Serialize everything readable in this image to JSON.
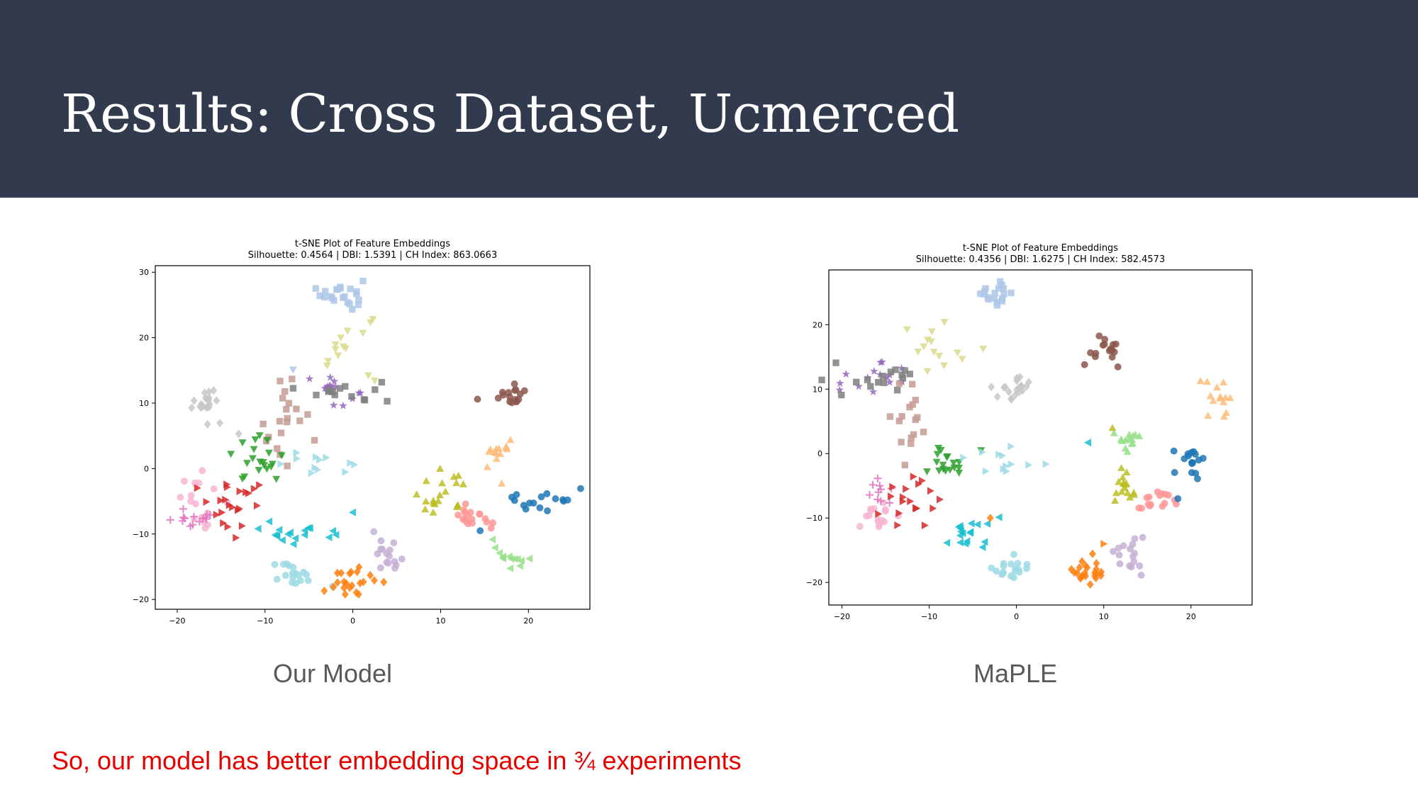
{
  "slide": {
    "title": "Results: Cross Dataset, Ucmerced",
    "caption_left": "Our Model",
    "caption_right": "MaPLE",
    "conclusion": "So, our model has better embedding space in ¾ experiments"
  },
  "chart_data": [
    {
      "type": "scatter",
      "title": "t-SNE Plot of Feature Embeddings",
      "subtitle": "Silhouette: 0.4564 | DBI: 1.5391 | CH Index: 863.0663",
      "xlabel": "",
      "ylabel": "",
      "xlim": [
        -22.5,
        27
      ],
      "ylim": [
        -21.5,
        31
      ],
      "xticks": [
        "−20",
        "−10",
        "0",
        "10",
        "20"
      ],
      "yticks": [
        "30",
        "20",
        "10",
        "0",
        "−10",
        "−20"
      ],
      "xtick_values": [
        -20,
        -10,
        0,
        10,
        20
      ],
      "ytick_values": [
        30,
        20,
        10,
        0,
        -10,
        -20
      ],
      "grid": false,
      "clusters": [
        {
          "color": "#aec7e8",
          "marker": "square",
          "cx": -1.2,
          "cy": 26.8,
          "sx": 1.2,
          "sy": 1.2,
          "n": 22
        },
        {
          "color": "#dbdb8d",
          "marker": "triangle-down",
          "cx": -0.8,
          "cy": 18.5,
          "sx": 1.8,
          "sy": 3.2,
          "n": 14
        },
        {
          "color": "#c7c7c7",
          "marker": "diamond",
          "cx": -16.6,
          "cy": 10.2,
          "sx": 1.0,
          "sy": 1.2,
          "n": 20
        },
        {
          "color": "#9467bd",
          "marker": "star",
          "cx": -2.5,
          "cy": 12.2,
          "sx": 2.0,
          "sy": 1.2,
          "n": 16
        },
        {
          "color": "#7f7f7f",
          "marker": "square",
          "cx": -0.5,
          "cy": 11.9,
          "sx": 1.8,
          "sy": 1.0,
          "n": 14
        },
        {
          "color": "#c49c94",
          "marker": "square",
          "cx": -8.0,
          "cy": 7.5,
          "sx": 1.4,
          "sy": 3.8,
          "n": 20
        },
        {
          "color": "#8c564b",
          "marker": "circle",
          "cx": 18.0,
          "cy": 11.2,
          "sx": 0.9,
          "sy": 0.8,
          "n": 16
        },
        {
          "color": "#ffbb78",
          "marker": "triangle-up",
          "cx": 16.5,
          "cy": 2.0,
          "sx": 1.0,
          "sy": 1.4,
          "n": 14
        },
        {
          "color": "#2ca02c",
          "marker": "triangle-down",
          "cx": -10.8,
          "cy": 1.5,
          "sx": 1.5,
          "sy": 1.6,
          "n": 20
        },
        {
          "color": "#9edae5",
          "marker": "triangle-right",
          "cx": -4.2,
          "cy": 0.8,
          "sx": 2.4,
          "sy": 1.2,
          "n": 12
        },
        {
          "color": "#f7b6d2",
          "marker": "circle",
          "cx": -17.0,
          "cy": -4.5,
          "sx": 1.3,
          "sy": 1.8,
          "n": 16
        },
        {
          "color": "#e377c2",
          "marker": "plus",
          "cx": -17.5,
          "cy": -7.8,
          "sx": 1.6,
          "sy": 0.9,
          "n": 14
        },
        {
          "color": "#d62728",
          "marker": "triangle-right",
          "cx": -13.5,
          "cy": -6.0,
          "sx": 2.3,
          "sy": 2.0,
          "n": 22
        },
        {
          "color": "#bcbd22",
          "marker": "triangle-up",
          "cx": 10.0,
          "cy": -3.8,
          "sx": 1.6,
          "sy": 1.8,
          "n": 20
        },
        {
          "color": "#ff9896",
          "marker": "circle",
          "cx": 13.5,
          "cy": -7.8,
          "sx": 1.2,
          "sy": 0.8,
          "n": 18
        },
        {
          "color": "#1f77b4",
          "marker": "circle",
          "cx": 22.0,
          "cy": -5.0,
          "sx": 2.3,
          "sy": 0.9,
          "n": 16
        },
        {
          "color": "#17becf",
          "marker": "triangle-left",
          "cx": -6.5,
          "cy": -9.6,
          "sx": 2.0,
          "sy": 1.2,
          "n": 18
        },
        {
          "color": "#c5b0d5",
          "marker": "circle",
          "cx": 4.5,
          "cy": -13.2,
          "sx": 1.1,
          "sy": 1.3,
          "n": 16
        },
        {
          "color": "#98df8a",
          "marker": "triangle-left",
          "cx": 17.5,
          "cy": -12.8,
          "sx": 1.3,
          "sy": 1.0,
          "n": 14
        },
        {
          "color": "#9edae5",
          "marker": "circle",
          "cx": -6.5,
          "cy": -16.2,
          "sx": 1.4,
          "sy": 1.0,
          "n": 18
        },
        {
          "color": "#ff7f0e",
          "marker": "diamond",
          "cx": 0.2,
          "cy": -17.3,
          "sx": 1.2,
          "sy": 1.1,
          "n": 22
        }
      ],
      "outliers": [
        {
          "x": 14.2,
          "y": 10.6,
          "color": "#8c564b",
          "marker": "circle"
        },
        {
          "x": 0.0,
          "y": -6.7,
          "color": "#17becf",
          "marker": "triangle-left"
        },
        {
          "x": -13.0,
          "y": 5.3,
          "color": "#c7c7c7",
          "marker": "diamond"
        },
        {
          "x": 14.5,
          "y": -9.5,
          "color": "#1f77b4",
          "marker": "circle"
        },
        {
          "x": -6.8,
          "y": 15.1,
          "color": "#aec7e8",
          "marker": "triangle-down"
        }
      ]
    },
    {
      "type": "scatter",
      "title": "t-SNE Plot of Feature Embeddings",
      "subtitle": "Silhouette: 0.4356 | DBI: 1.6275 | CH Index: 582.4573",
      "xlabel": "",
      "ylabel": "",
      "xlim": [
        -21.5,
        27
      ],
      "ylim": [
        -23.5,
        28.5
      ],
      "xticks": [
        "−20",
        "−10",
        "0",
        "10",
        "20"
      ],
      "yticks": [
        "20",
        "10",
        "0",
        "−10",
        "−20"
      ],
      "xtick_values": [
        -20,
        -10,
        0,
        10,
        20
      ],
      "ytick_values": [
        20,
        10,
        0,
        -10,
        -20
      ],
      "grid": false,
      "clusters": [
        {
          "color": "#aec7e8",
          "marker": "square",
          "cx": -2.5,
          "cy": 24.6,
          "sx": 1.1,
          "sy": 0.9,
          "n": 18
        },
        {
          "color": "#dbdb8d",
          "marker": "triangle-down",
          "cx": -8.5,
          "cy": 16.8,
          "sx": 2.5,
          "sy": 2.0,
          "n": 14
        },
        {
          "color": "#9467bd",
          "marker": "star",
          "cx": -15.5,
          "cy": 12.5,
          "sx": 2.2,
          "sy": 1.4,
          "n": 16
        },
        {
          "color": "#7f7f7f",
          "marker": "square",
          "cx": -15.0,
          "cy": 11.0,
          "sx": 3.0,
          "sy": 1.4,
          "n": 16
        },
        {
          "color": "#c49c94",
          "marker": "square",
          "cx": -12.5,
          "cy": 5.0,
          "sx": 1.2,
          "sy": 2.8,
          "n": 16
        },
        {
          "color": "#c7c7c7",
          "marker": "diamond",
          "cx": -0.5,
          "cy": 10.0,
          "sx": 1.0,
          "sy": 1.2,
          "n": 20
        },
        {
          "color": "#8c564b",
          "marker": "circle",
          "cx": 10.5,
          "cy": 17.0,
          "sx": 0.9,
          "sy": 1.0,
          "n": 16
        },
        {
          "color": "#ffbb78",
          "marker": "triangle-up",
          "cx": 23.2,
          "cy": 8.4,
          "sx": 0.8,
          "sy": 1.6,
          "n": 14
        },
        {
          "color": "#98df8a",
          "marker": "triangle-up",
          "cx": 13.0,
          "cy": 2.0,
          "sx": 0.9,
          "sy": 1.0,
          "n": 14
        },
        {
          "color": "#1f77b4",
          "marker": "circle",
          "cx": 20.0,
          "cy": -0.8,
          "sx": 1.1,
          "sy": 1.2,
          "n": 16
        },
        {
          "color": "#2ca02c",
          "marker": "triangle-down",
          "cx": -8.0,
          "cy": -1.5,
          "sx": 1.3,
          "sy": 1.2,
          "n": 18
        },
        {
          "color": "#9edae5",
          "marker": "triangle-right",
          "cx": -0.5,
          "cy": -0.8,
          "sx": 1.8,
          "sy": 1.2,
          "n": 12
        },
        {
          "color": "#f7b6d2",
          "marker": "circle",
          "cx": -16.0,
          "cy": -9.5,
          "sx": 1.0,
          "sy": 1.2,
          "n": 16
        },
        {
          "color": "#e377c2",
          "marker": "plus",
          "cx": -17.0,
          "cy": -6.0,
          "sx": 1.4,
          "sy": 1.2,
          "n": 10
        },
        {
          "color": "#d62728",
          "marker": "triangle-right",
          "cx": -12.5,
          "cy": -7.0,
          "sx": 2.5,
          "sy": 2.8,
          "n": 18
        },
        {
          "color": "#bcbd22",
          "marker": "triangle-up",
          "cx": 12.0,
          "cy": -5.5,
          "sx": 0.8,
          "sy": 1.6,
          "n": 16
        },
        {
          "color": "#ff9896",
          "marker": "circle",
          "cx": 15.8,
          "cy": -7.5,
          "sx": 1.2,
          "sy": 0.8,
          "n": 16
        },
        {
          "color": "#17becf",
          "marker": "triangle-left",
          "cx": -5.0,
          "cy": -12.5,
          "sx": 1.6,
          "sy": 1.6,
          "n": 18
        },
        {
          "color": "#9edae5",
          "marker": "circle",
          "cx": -0.5,
          "cy": -18.0,
          "sx": 1.2,
          "sy": 1.0,
          "n": 18
        },
        {
          "color": "#c5b0d5",
          "marker": "circle",
          "cx": 12.5,
          "cy": -15.5,
          "sx": 0.9,
          "sy": 1.6,
          "n": 16
        },
        {
          "color": "#ff7f0e",
          "marker": "diamond",
          "cx": 8.0,
          "cy": -18.5,
          "sx": 1.2,
          "sy": 0.9,
          "n": 22
        }
      ],
      "outliers": [
        {
          "x": 7.8,
          "y": 13.8,
          "color": "#8c564b",
          "marker": "circle"
        },
        {
          "x": 8.2,
          "y": 1.7,
          "color": "#17becf",
          "marker": "triangle-left"
        },
        {
          "x": 18.5,
          "y": -7.0,
          "color": "#1f77b4",
          "marker": "circle"
        },
        {
          "x": -3.0,
          "y": -10.0,
          "color": "#ff7f0e",
          "marker": "diamond"
        },
        {
          "x": 10.0,
          "y": -14.0,
          "color": "#ff7f0e",
          "marker": "triangle-right"
        },
        {
          "x": 11.0,
          "y": 4.0,
          "color": "#bcbd22",
          "marker": "triangle-up"
        }
      ]
    }
  ]
}
